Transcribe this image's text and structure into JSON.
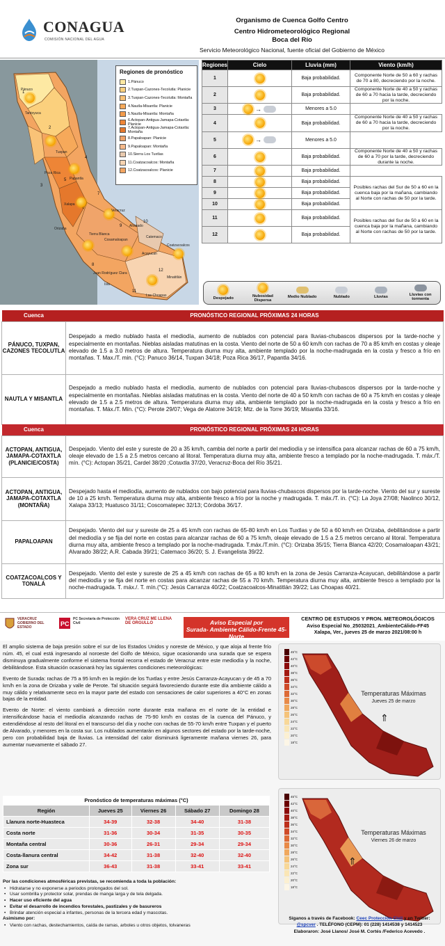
{
  "header": {
    "logo_word": "CONAGUA",
    "logo_sub": "COMISIÓN NACIONAL DEL AGUA",
    "org": "Organismo de Cuenca Golfo Centro",
    "center": "Centro Hidrometeorológico Regional",
    "place": "Boca del Río",
    "service": "Servicio Meteorológico Nacional, fuente oficial del Gobierno de México"
  },
  "map": {
    "legend_title": "Regiones de pronóstico",
    "legend": [
      {
        "label": "1.Pánuco",
        "color": "#fde9a3"
      },
      {
        "label": "2.Tuxpan-Cazones-Tecolutla: Planicie",
        "color": "#fbd07d"
      },
      {
        "label": "3.Tuxpan-Cazones-Tecolutla: Montaña",
        "color": "#f9c277"
      },
      {
        "label": "4.Nautla-Misantla: Planicie",
        "color": "#f6a95a"
      },
      {
        "label": "5.Nautla-Misantla: Montaña",
        "color": "#f39b4b"
      },
      {
        "label": "6.Actopan-Antigua-Jamapa-Cotaxtla: Planicie",
        "color": "#ee8536"
      },
      {
        "label": "7.Actopan-Antigua-Jamapa-Cotaxtla: Montaña",
        "color": "#e5782c"
      },
      {
        "label": "8.Papaloapan: Planicie",
        "color": "#f0a46a"
      },
      {
        "label": "9.Papaloapan: Montaña",
        "color": "#f6b98a"
      },
      {
        "label": "10.Sierra Los Tuxtlas",
        "color": "#e8c9ae"
      },
      {
        "label": "11.Coatzacoalcos: Montaña",
        "color": "#f8d4b1"
      },
      {
        "label": "12.Coatzacoalcos: Planicie",
        "color": "#f3a561"
      }
    ],
    "cities": [
      "Pánuco",
      "Tantoyuca",
      "Tuxpan",
      "Poza Rica",
      "Papantla",
      "Martínez de la Torre",
      "Xalapa",
      "Veracruz",
      "Orizaba",
      "Córdoba",
      "Tierra Blanca",
      "Cosamaloapan",
      "Alvarado",
      "Catemaco",
      "Coatzacoalcos",
      "Acayucan",
      "Juan Rodríguez Clara",
      "Isla",
      "Tres Valles",
      "Playa Vicente",
      "Jesús Carranza",
      "Minatitlán",
      "Las Choapas",
      "Tlapacoyan",
      "Naolinco",
      "Huatusco"
    ],
    "numbers": [
      "1",
      "2",
      "3",
      "4",
      "5",
      "6",
      "7",
      "8",
      "9",
      "10",
      "11",
      "12"
    ]
  },
  "regions_table": {
    "headers": [
      "Regiones",
      "Cielo",
      "Lluvia (mm)",
      "Viento (km/h)"
    ],
    "rows": [
      {
        "region": "1",
        "sky": "sun",
        "rain": "Baja probabilidad."
      },
      {
        "region": "2",
        "sky": "sun",
        "rain": "Baja probabilidad."
      },
      {
        "region": "3",
        "sky": "sun-to-rain",
        "rain": "Menores a 5.0"
      },
      {
        "region": "4",
        "sky": "sun",
        "rain": "Baja probabilidad."
      },
      {
        "region": "5",
        "sky": "sun-to-rain",
        "rain": "Menores a 5.0"
      },
      {
        "region": "6",
        "sky": "sun",
        "rain": "Baja probabilidad."
      },
      {
        "region": "7",
        "sky": "sun",
        "rain": "Baja probabilidad."
      },
      {
        "region": "8",
        "sky": "sun",
        "rain": "Baja probabilidad."
      },
      {
        "region": "9",
        "sky": "sun",
        "rain": "Baja probabilidad."
      },
      {
        "region": "10",
        "sky": "sun",
        "rain": "Baja probabilidad."
      },
      {
        "region": "11",
        "sky": "sun",
        "rain": "Baja probabilidad."
      },
      {
        "region": "12",
        "sky": "sun",
        "rain": "Baja probabilidad."
      }
    ],
    "winds": [
      "Componente Norte de 50 a 60 y rachas de 70 a 80, decreciendo por la noche.",
      "Componente Norte de 40 a 50 y rachas de 60 a 70 hacia la tarde, decreciendo por la noche.",
      "Componente Norte de 40 a 50 y rachas de 60 a 70 hacia la tarde, decreciendo por la noche.",
      "Componente Norte de 40 a 50 y rachas de 60 a 70 por la tarde, decreciendo durante la noche.",
      "Posibles rachas del Sur de 50 a 60 en la cuenca baja por la mañana, cambiando al Norte con rachas de 50 por la tarde.",
      "Posibles rachas del Sur de 50 a 60 en la cuenca baja por la mañana, cambiando al Norte con rachas de 50 por la tarde."
    ],
    "sky_legend": [
      "Despejado",
      "Nubosidad Dispersa",
      "Medio Nublado",
      "Nublado",
      "Lluvias",
      "Lluvias con tormenta"
    ]
  },
  "forecast1": {
    "h_cuenca": "Cuenca",
    "h_title": "PRONÓSTICO REGIONAL PRÓXIMAS 24 HORAS",
    "rows": [
      {
        "basin": "PÁNUCO, TUXPAN, CAZONES TECOLUTLA",
        "text": "Despejado a medio nublado hasta el mediodía, aumento de nublados con potencial para lluvias-chubascos dispersos por la tarde-noche y especialmente en montañas. Nieblas aisladas matutinas en la costa. Viento del norte de 50 a 60 km/h con rachas de 70 a 85 km/h en costas y oleaje elevado de 1.5 a 3.0 metros de altura. Temperatura diurna muy alta, ambiente templado por la noche-madrugada en la costa y fresco a frío en montañas. T. Max./T. min. (°C): Panuco 36/14, Tuxpan 34/18; Poza Rica 36/17, Papantla 34/16."
      },
      {
        "basin": "NAUTLA Y MISANTLA",
        "text": "Despejado a medio nublado hasta el mediodía, aumento de nublados con potencial para lluvias-chubascos dispersos por la tarde-noche y especialmente en montañas. Nieblas aisladas matutinas en la costa. Viento del norte de 40 a 50 km/h con rachas de 60 a 75 km/h en costas y oleaje elevado de 1.5 a 2.5 metros de altura. Temperatura diurna muy alta, ambiente templado por la noche-madrugada en la costa y fresco a frío en montañas. T. Máx./T. Mín. (°C): Perote 29/07; Vega de Alatorre 34/19; Mtz. de la Torre 36/19; Misantla 33/16."
      }
    ]
  },
  "forecast2": {
    "h_cuenca": "Cuenca",
    "h_title": "PRONÓSTICO REGIONAL PRÓXIMAS 24 HORAS",
    "rows": [
      {
        "basin": "ACTOPAN, ANTIGUA, JAMAPA-COTAXTLA (PLANICIE/COSTA)",
        "text": "Despejado. Viento del este y sureste de 20 a 35 km/h, cambia del norte a partir del mediodía y se intensifica para alcanzar rachas de 60 a 75 km/h, oleaje elevado de 1.5 a 2.5 metros cercano al litoral. Temperatura diurna muy alta, ambiente fresco a templado por la noche-madrugada. T. máx./T. mín. (°C): Actopan 35/21, Cardel 38/20 ;Cotaxtla 37/20, Veracruz-Boca del Río 35/21."
      },
      {
        "basin": "ACTOPAN, ANTIGUA, JAMAPA-COTAXTLA (MONTAÑA)",
        "text": "Despejado hasta el mediodía, aumento de nublados con bajo potencial para lluvias-chubascos dispersos por la tarde-noche. Viento del sur y sureste de 10 a 25 km/h. Temperatura diurna muy alta, ambiente fresco a frío por la noche y madrugada. T. máx./T. in. (°C): La Joya 27/08; Naolinco 30/12, Xalapa 33/13; Huatusco 31/11; Coscomatepec 32/13; Córdoba 36/17."
      },
      {
        "basin": "PAPALOAPAN",
        "text": "Despejado. Viento del sur y sureste de 25 a 45 km/h con rachas de 65-80 km/h en Los Tuxtlas y de 50 a 60 km/h en Orizaba, debilitándose a partir del mediodía y se fija del norte en costas para alcanzar rachas de 60 a 75 km/h, oleaje elevado de 1.5 a 2.5 metros cercano al litoral. Temperatura diurna muy alta, ambiente fresco a templado por la noche-madrugada. T.máx./T.mín. (°C): Orizaba 35/15; Tierra Blanca 42/20; Cosamaloapan 43/21; Alvarado 38/22; A.R. Cabada 39/21; Catemaco 36/20; S. J. Evangelista 39/22."
      },
      {
        "basin": "COATZACOALCOS Y TONALÁ",
        "text": "Despejado. Viento del este y sureste de 25 a 45 km/h con rachas de 65 a 80 km/h en la zona de Jesús Carranza-Acayucan, debilitándose a partir del mediodía y se fija del norte en costas para alcanzar rachas de 55 a 70 km/h. Temperatura diurna muy alta, ambiente fresco a templado por la noche-madrugada. T. máx./. T. mín.(°C): Jesús Carranza 40/22; Coatzacoalcos-Minatitlán 39/22; Las Choapas 40/21."
      }
    ]
  },
  "notice": {
    "gov1": "VERACRUZ GOBIERNO DEL ESTADO",
    "gov2": "PC Secretaría de Protección Civil",
    "gov3": "VERA CRUZ ME LLENA DE ORGULLO",
    "badge1": "Aviso Especial por",
    "badge2": "Surada- Ambiente Cálido-Frente 45-Norte",
    "center": "CENTRO DE ESTUDIOS Y PRON. METEOROLÓGICOS",
    "ref": "Aviso Especial No_25032021_AmbienteCálido-FF45",
    "date": "Xalapa, Ver., jueves 25 de marzo 2021/08:00 h",
    "p1": "El amplio sistema de baja presión sobre el sur de los Estados Unidos y noreste de México, y que aloja al frente frío núm. 45, el cual está ingresando al noroeste del Golfo de México, sigue ocasionando una surada que se espera disminuya gradualmente conforme el sistema frontal recorra el estado de Veracruz entre este mediodía y la noche, debilitándose. Esta situación ocasionará hoy las siguientes condiciones meteorológicas:",
    "p2": "Evento de Surada: rachas de 75 a 95 km/h en la región de los Tuxtlas y entre Jesús Carranza-Acayucan y de 45 a 70 km/h en la zona de Orizaba y valle de Perote. Tal situación seguirá favoreciendo durante este día ambiente cálido a muy cálido y relativamente seco en la mayor parte del estado con sensaciones de calor superiores a 40°C en zonas bajas de la entidad.",
    "p3": "Evento de Norte: el viento cambiará a dirección norte durante esta mañana en el norte de la entidad e intensificándose hacia el mediodía alcanzando rachas de 75-90 km/h en costas de la cuenca del Pánuco, y extendiéndose al resto del litoral en el transcurso del día y noche con rachas de 55-70 km/h entre Tuxpan y el puerto de Alvarado, y menores en la costa sur. Los nublados aumentarán en algunos sectores del estado por la tarde-noche, pero con probabilidad baja de lluvias. La intensidad del calor disminuirá ligeramente mañana viernes 26, para aumentar nuevamente el sábado 27.",
    "temp_caption": "Pronóstico de temperaturas máximas (°C)",
    "temp_headers": [
      "Región",
      "Jueves 25",
      "Viernes 26",
      "Sábado 27",
      "Domingo 28"
    ],
    "temp_rows": [
      {
        "region": "Llanura norte-Huasteca",
        "v": [
          "34-39",
          "32-38",
          "34-40",
          "31-38"
        ]
      },
      {
        "region": "Costa norte",
        "v": [
          "31-36",
          "30-34",
          "31-35",
          "30-35"
        ]
      },
      {
        "region": "Montaña central",
        "v": [
          "30-36",
          "26-31",
          "29-34",
          "29-34"
        ]
      },
      {
        "region": "Costa-llanura central",
        "v": [
          "34-42",
          "31-38",
          "32-40",
          "32-40"
        ]
      },
      {
        "region": "Zona sur",
        "v": [
          "36-43",
          "31-38",
          "33-41",
          "33-41"
        ]
      }
    ],
    "recs_title": "Por las condiciones atmosféricas previstas, se recomienda a toda la población:",
    "recs": [
      "Hidratarse y no exponerse a periodos prolongados del sol.",
      "Usar sombrilla y protector solar, prendas de manga larga y de tela delgada.",
      "Hacer uso eficiente del agua",
      "Evitar el desarrollo de incendios forestales, pastizales y de basureros",
      "Brindar atención especial a infantes, personas de la tercera edad y mascotas."
    ],
    "recs_also": "Asimismo por:",
    "recs2": [
      "Viento con rachas, destechamientos, caída de ramas, arboles u otros objetos, tolvaneras"
    ],
    "map1_title": "Temperaturas Máximas",
    "map1_date": "Jueves 25 de marzo",
    "map2_title": "Temperaturas Máximas",
    "map2_date": "Viernes 26 de marzo",
    "scale": [
      "45°C",
      "42°C",
      "40°C",
      "38°C",
      "36°C",
      "34°C",
      "32°C",
      "30°C",
      "28°C",
      "26°C",
      "24°C",
      "22°C",
      "20°C",
      "18°C"
    ],
    "foot1": "Síganos a través de Facebook:",
    "foot_fb": "Ceec Protección Civil",
    "foot1b": "y en Twitter:",
    "foot_tw": "@spcver",
    "foot2": ". TELÉFONO (CEPM): 01 (228) 1414538 y 1414523",
    "foot3": "Elaboraron: José Llanos/ José M. Cortés /Federico Acevedo ."
  }
}
